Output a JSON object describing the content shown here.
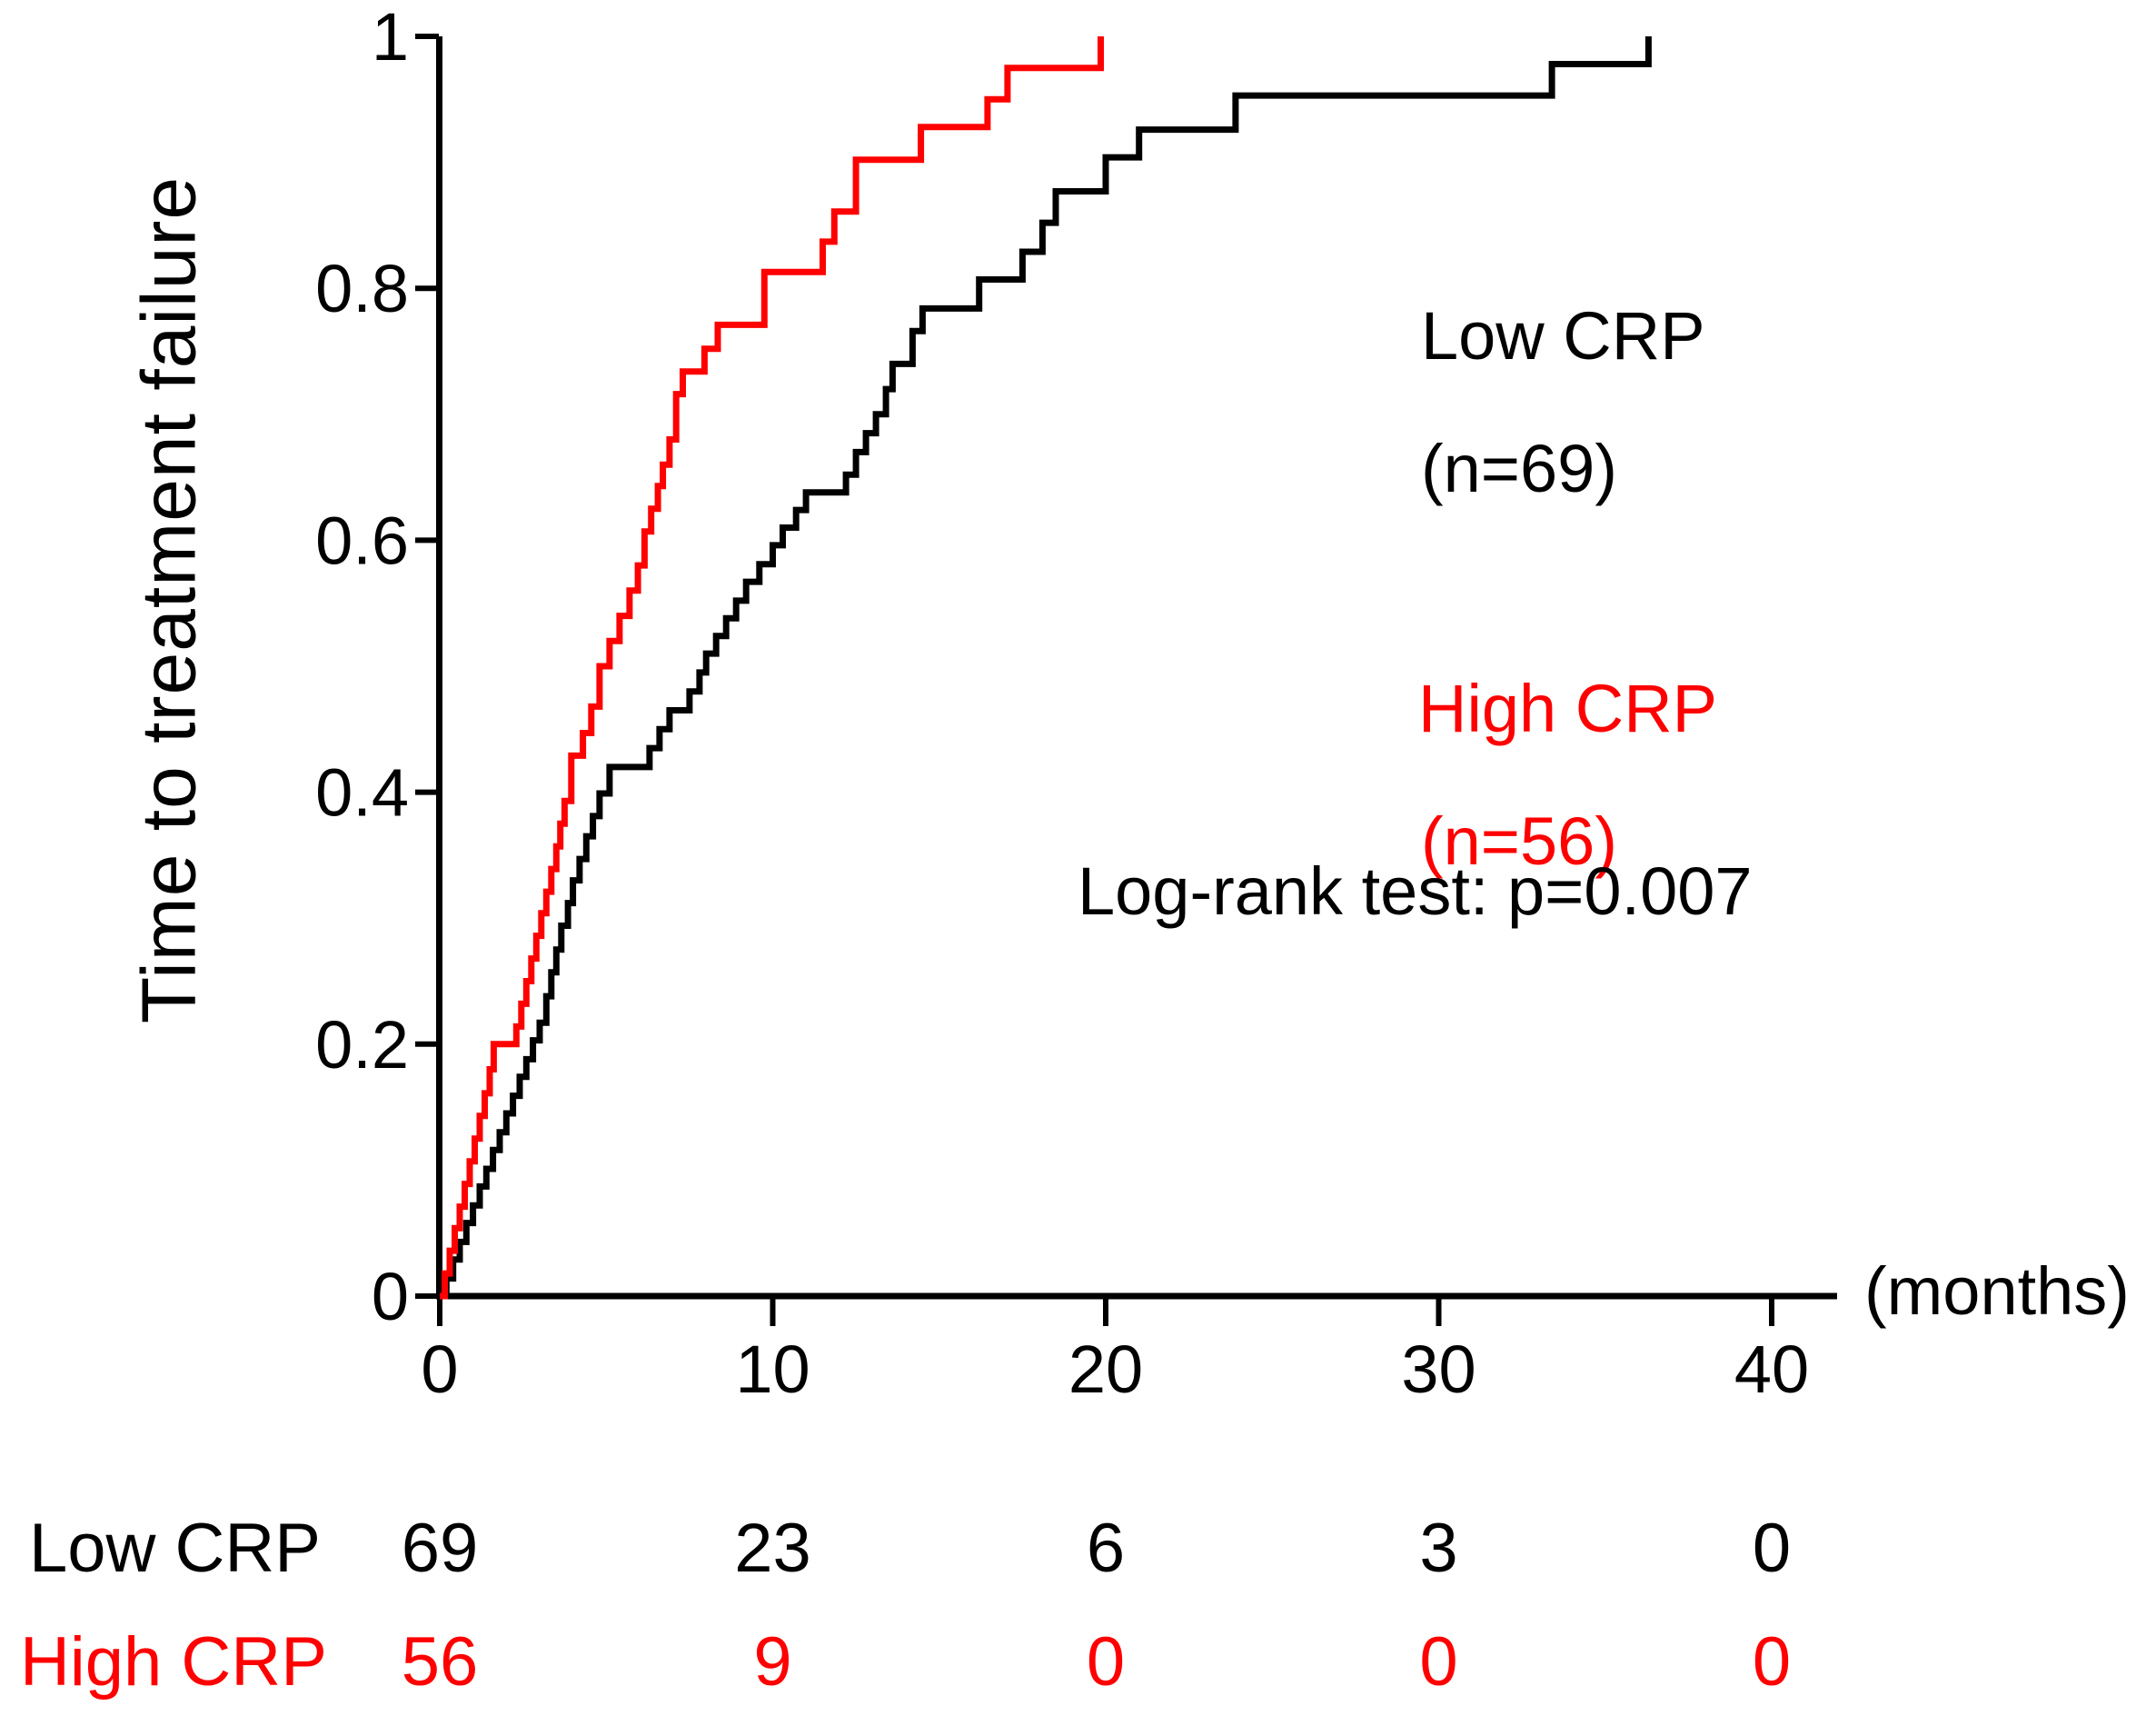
{
  "chart_data": {
    "type": "line",
    "subtype": "kaplan-meier-cumulative-incidence-steps",
    "title": "",
    "ylabel": "Time to treatment failure",
    "x_unit_label": "(months)",
    "x_ticks": [
      "0",
      "10",
      "20",
      "30",
      "40"
    ],
    "x_tick_values": [
      0,
      10,
      20,
      30,
      40
    ],
    "y_ticks": [
      "0",
      "0.2",
      "0.4",
      "0.6",
      "0.8",
      "1"
    ],
    "y_tick_values": [
      0,
      0.2,
      0.4,
      0.6,
      0.8,
      1
    ],
    "xlim": [
      0,
      42
    ],
    "ylim": [
      0,
      1
    ],
    "grid": false,
    "annotation": "Log-rank test: p=0.007",
    "legend_position": "inside-upper-right",
    "colors": {
      "low_crp": "#000000",
      "high_crp": "#ff0000",
      "background": "#ffffff"
    },
    "series": [
      {
        "name": "Low CRP",
        "label_line1": "Low CRP",
        "label_line2": "(n=69)",
        "n": 69,
        "color": "#000000",
        "steps": [
          [
            0.2,
            0.014
          ],
          [
            0.4,
            0.029
          ],
          [
            0.6,
            0.043
          ],
          [
            0.8,
            0.058
          ],
          [
            1.0,
            0.072
          ],
          [
            1.2,
            0.087
          ],
          [
            1.4,
            0.101
          ],
          [
            1.6,
            0.116
          ],
          [
            1.8,
            0.13
          ],
          [
            2.0,
            0.145
          ],
          [
            2.2,
            0.159
          ],
          [
            2.4,
            0.174
          ],
          [
            2.6,
            0.188
          ],
          [
            2.8,
            0.203
          ],
          [
            3.0,
            0.217
          ],
          [
            3.2,
            0.238
          ],
          [
            3.35,
            0.257
          ],
          [
            3.5,
            0.275
          ],
          [
            3.65,
            0.294
          ],
          [
            3.85,
            0.312
          ],
          [
            4.0,
            0.33
          ],
          [
            4.2,
            0.347
          ],
          [
            4.4,
            0.365
          ],
          [
            4.6,
            0.381
          ],
          [
            4.8,
            0.399
          ],
          [
            5.1,
            0.42
          ],
          [
            6.3,
            0.435
          ],
          [
            6.6,
            0.45
          ],
          [
            6.9,
            0.465
          ],
          [
            7.5,
            0.48
          ],
          [
            7.8,
            0.495
          ],
          [
            8.0,
            0.51
          ],
          [
            8.3,
            0.524
          ],
          [
            8.6,
            0.538
          ],
          [
            8.9,
            0.552
          ],
          [
            9.2,
            0.567
          ],
          [
            9.6,
            0.581
          ],
          [
            10.0,
            0.596
          ],
          [
            10.3,
            0.61
          ],
          [
            10.7,
            0.624
          ],
          [
            11.0,
            0.638
          ],
          [
            12.2,
            0.652
          ],
          [
            12.5,
            0.67
          ],
          [
            12.8,
            0.685
          ],
          [
            13.1,
            0.7
          ],
          [
            13.4,
            0.72
          ],
          [
            13.6,
            0.74
          ],
          [
            14.2,
            0.766
          ],
          [
            14.5,
            0.784
          ],
          [
            16.2,
            0.807
          ],
          [
            17.5,
            0.829
          ],
          [
            18.1,
            0.852
          ],
          [
            18.5,
            0.877
          ],
          [
            20.0,
            0.904
          ],
          [
            21.0,
            0.926
          ],
          [
            23.9,
            0.953
          ],
          [
            33.4,
            0.978
          ],
          [
            36.3,
            1.0
          ]
        ]
      },
      {
        "name": "High CRP",
        "label_line1": "High CRP",
        "label_line2": "(n=56)",
        "n": 56,
        "color": "#ff0000",
        "steps": [
          [
            0.15,
            0.018
          ],
          [
            0.3,
            0.036
          ],
          [
            0.45,
            0.054
          ],
          [
            0.6,
            0.071
          ],
          [
            0.75,
            0.089
          ],
          [
            0.9,
            0.107
          ],
          [
            1.05,
            0.125
          ],
          [
            1.2,
            0.143
          ],
          [
            1.35,
            0.161
          ],
          [
            1.5,
            0.18
          ],
          [
            1.62,
            0.2
          ],
          [
            2.3,
            0.214
          ],
          [
            2.45,
            0.232
          ],
          [
            2.6,
            0.25
          ],
          [
            2.75,
            0.268
          ],
          [
            2.9,
            0.286
          ],
          [
            3.05,
            0.304
          ],
          [
            3.2,
            0.321
          ],
          [
            3.35,
            0.339
          ],
          [
            3.5,
            0.357
          ],
          [
            3.62,
            0.375
          ],
          [
            3.75,
            0.393
          ],
          [
            3.95,
            0.429
          ],
          [
            4.3,
            0.447
          ],
          [
            4.55,
            0.468
          ],
          [
            4.8,
            0.5
          ],
          [
            5.1,
            0.52
          ],
          [
            5.4,
            0.54
          ],
          [
            5.7,
            0.56
          ],
          [
            5.95,
            0.58
          ],
          [
            6.15,
            0.607
          ],
          [
            6.35,
            0.625
          ],
          [
            6.55,
            0.643
          ],
          [
            6.7,
            0.66
          ],
          [
            6.9,
            0.68
          ],
          [
            7.1,
            0.716
          ],
          [
            7.3,
            0.734
          ],
          [
            7.95,
            0.752
          ],
          [
            8.35,
            0.771
          ],
          [
            9.75,
            0.813
          ],
          [
            11.5,
            0.837
          ],
          [
            11.85,
            0.861
          ],
          [
            12.5,
            0.902
          ],
          [
            14.45,
            0.928
          ],
          [
            16.45,
            0.95
          ],
          [
            17.05,
            0.975
          ],
          [
            19.85,
            1.0
          ]
        ]
      }
    ],
    "risk_table": {
      "time_points": [
        0,
        10,
        20,
        30,
        40
      ],
      "rows": [
        {
          "label": "Low CRP",
          "color": "#000000",
          "counts": [
            "69",
            "23",
            "6",
            "3",
            "0"
          ]
        },
        {
          "label": "High CRP",
          "color": "#ff0000",
          "counts": [
            "56",
            "9",
            "0",
            "0",
            "0"
          ]
        }
      ]
    }
  }
}
